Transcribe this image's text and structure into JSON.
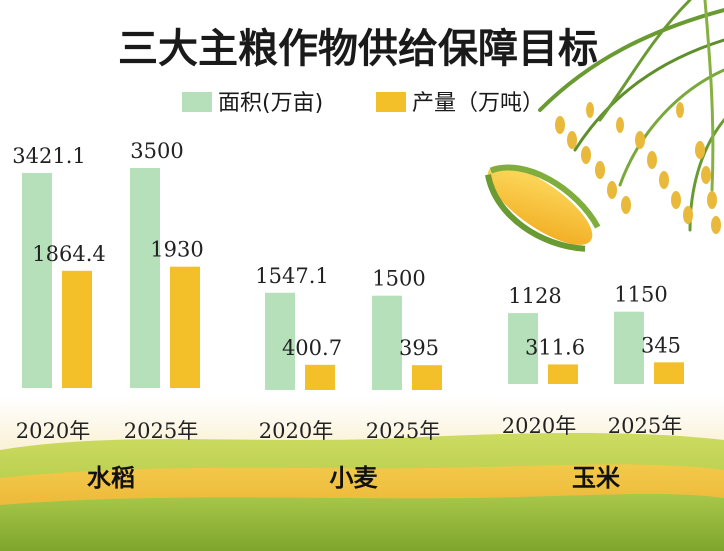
{
  "chart_data": {
    "type": "bar",
    "title": "三大主粮作物供给保障目标",
    "legend": {
      "placement": "top"
    },
    "grid": false,
    "series": [
      {
        "name": "面积(万亩)",
        "color": "#b5e0ba"
      },
      {
        "name": "产量（万吨）",
        "color": "#f4c02a"
      }
    ],
    "groups": [
      {
        "category": "水稻",
        "bars": [
          {
            "x": "2020年",
            "area": 3421.1,
            "output": 1864.4,
            "area_label": "3421.1",
            "output_label": "1864.4"
          },
          {
            "x": "2025年",
            "area": 3500,
            "output": 1930,
            "area_label": "3500",
            "output_label": "1930"
          }
        ]
      },
      {
        "category": "小麦",
        "bars": [
          {
            "x": "2020年",
            "area": 1547.1,
            "output": 400.7,
            "area_label": "1547.1",
            "output_label": "400.7"
          },
          {
            "x": "2025年",
            "area": 1500,
            "output": 395,
            "area_label": "1500",
            "output_label": "395"
          }
        ]
      },
      {
        "category": "玉米",
        "bars": [
          {
            "x": "2020年",
            "area": 1128,
            "output": 311.6,
            "area_label": "1128",
            "output_label": "311.6"
          },
          {
            "x": "2025年",
            "area": 1150,
            "output": 345,
            "area_label": "1150",
            "output_label": "345"
          }
        ]
      }
    ]
  }
}
